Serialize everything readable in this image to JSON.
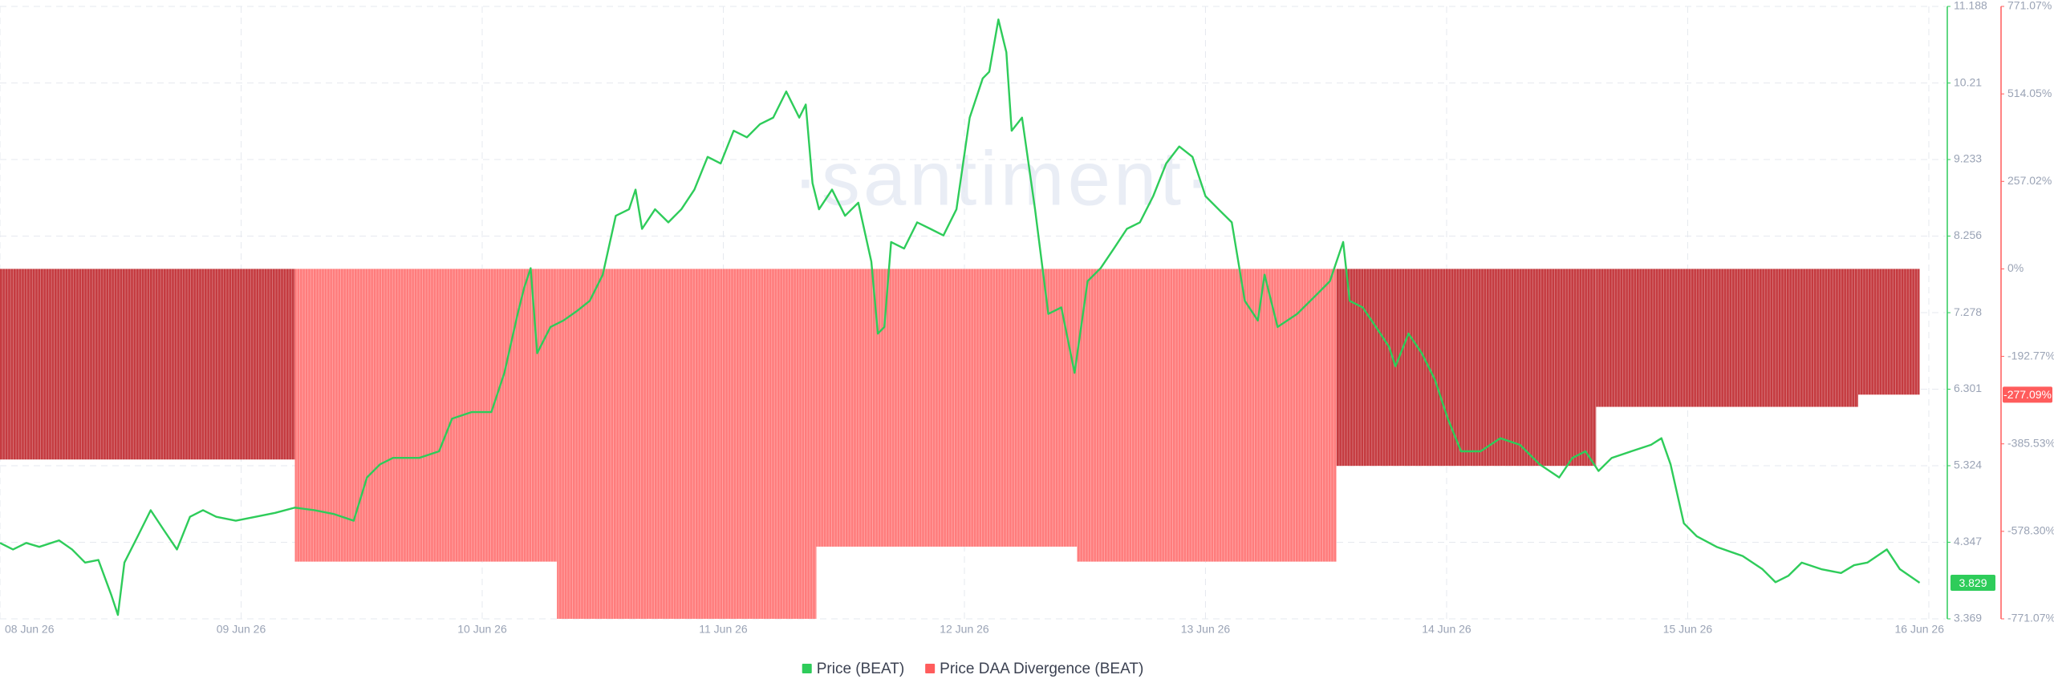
{
  "chart_data": {
    "type": "combo",
    "watermark": "·santiment·",
    "grid": true,
    "legend": "bottom",
    "xlim": [
      0,
      8.07
    ],
    "xticks": [
      {
        "value": 0,
        "label": "08 Jun 26"
      },
      {
        "value": 1,
        "label": "09 Jun 26"
      },
      {
        "value": 2,
        "label": "10 Jun 26"
      },
      {
        "value": 3,
        "label": "11 Jun 26"
      },
      {
        "value": 4,
        "label": "12 Jun 26"
      },
      {
        "value": 5,
        "label": "13 Jun 26"
      },
      {
        "value": 6,
        "label": "14 Jun 26"
      },
      {
        "value": 7,
        "label": "15 Jun 26"
      },
      {
        "value": 8,
        "label": "16 Jun 26"
      }
    ],
    "ylim": [
      3.369,
      11.188
    ],
    "yticks": [
      3.369,
      4.347,
      5.324,
      6.301,
      7.278,
      8.256,
      9.233,
      10.21,
      11.188
    ],
    "y2lim": [
      -771.07,
      771.07
    ],
    "y2ticks": [
      {
        "value": -771.07,
        "label": "-771.07%"
      },
      {
        "value": -578.3,
        "label": "-578.30%"
      },
      {
        "value": -385.53,
        "label": "-385.53%"
      },
      {
        "value": -192.77,
        "label": "-192.77%"
      },
      {
        "value": 0,
        "label": "0%"
      },
      {
        "value": 257.02,
        "label": "257.02%"
      },
      {
        "value": 514.05,
        "label": "514.05%"
      },
      {
        "value": 771.07,
        "label": "771.07%"
      }
    ],
    "series": [
      {
        "name": "Price (BEAT)",
        "type": "line",
        "color": "#2ecc5a",
        "x": [
          0,
          0.054,
          0.109,
          0.163,
          0.245,
          0.299,
          0.353,
          0.408,
          0.462,
          0.489,
          0.516,
          0.571,
          0.625,
          0.679,
          0.734,
          0.788,
          0.842,
          0.897,
          0.978,
          1.06,
          1.141,
          1.223,
          1.304,
          1.386,
          1.467,
          1.522,
          1.576,
          1.63,
          1.739,
          1.821,
          1.875,
          1.957,
          2.038,
          2.092,
          2.147,
          2.174,
          2.201,
          2.228,
          2.283,
          2.337,
          2.391,
          2.446,
          2.5,
          2.554,
          2.609,
          2.636,
          2.663,
          2.717,
          2.772,
          2.826,
          2.88,
          2.935,
          2.989,
          3.043,
          3.098,
          3.152,
          3.207,
          3.261,
          3.315,
          3.342,
          3.37,
          3.397,
          3.451,
          3.505,
          3.56,
          3.614,
          3.641,
          3.668,
          3.696,
          3.75,
          3.804,
          3.859,
          3.913,
          3.967,
          4.022,
          4.076,
          4.103,
          4.141,
          4.174,
          4.196,
          4.239,
          4.293,
          4.348,
          4.402,
          4.457,
          4.484,
          4.511,
          4.565,
          4.62,
          4.674,
          4.728,
          4.783,
          4.837,
          4.891,
          4.946,
          5,
          5.054,
          5.109,
          5.163,
          5.217,
          5.245,
          5.299,
          5.38,
          5.462,
          5.516,
          5.571,
          5.598,
          5.652,
          5.707,
          5.761,
          5.788,
          5.842,
          5.897,
          5.951,
          6.005,
          6.06,
          6.141,
          6.223,
          6.304,
          6.386,
          6.467,
          6.522,
          6.576,
          6.63,
          6.685,
          6.766,
          6.848,
          6.891,
          6.929,
          6.984,
          7.038,
          7.12,
          7.228,
          7.31,
          7.364,
          7.418,
          7.473,
          7.554,
          7.636,
          7.69,
          7.745,
          7.826,
          7.88,
          7.962
        ],
        "values": [
          4.338,
          4.255,
          4.338,
          4.288,
          4.371,
          4.255,
          4.087,
          4.121,
          3.67,
          3.419,
          4.087,
          4.422,
          4.756,
          4.505,
          4.255,
          4.672,
          4.756,
          4.672,
          4.622,
          4.672,
          4.722,
          4.789,
          4.756,
          4.706,
          4.622,
          5.174,
          5.341,
          5.424,
          5.424,
          5.508,
          5.925,
          6.009,
          6.009,
          6.51,
          7.262,
          7.596,
          7.846,
          6.761,
          7.095,
          7.178,
          7.295,
          7.429,
          7.763,
          8.515,
          8.598,
          8.849,
          8.348,
          8.598,
          8.431,
          8.598,
          8.849,
          9.267,
          9.183,
          9.601,
          9.517,
          9.684,
          9.768,
          10.102,
          9.768,
          9.935,
          8.932,
          8.598,
          8.849,
          8.515,
          8.682,
          7.93,
          7.011,
          7.095,
          8.18,
          8.097,
          8.431,
          8.348,
          8.264,
          8.598,
          9.768,
          10.269,
          10.353,
          11.021,
          10.603,
          9.601,
          9.768,
          8.598,
          7.262,
          7.345,
          6.51,
          7.095,
          7.68,
          7.846,
          8.097,
          8.348,
          8.431,
          8.765,
          9.183,
          9.4,
          9.267,
          8.765,
          8.598,
          8.431,
          7.429,
          7.178,
          7.763,
          7.095,
          7.262,
          7.512,
          7.68,
          8.18,
          7.429,
          7.345,
          7.095,
          6.844,
          6.593,
          7.011,
          6.761,
          6.426,
          5.925,
          5.508,
          5.508,
          5.675,
          5.591,
          5.341,
          5.174,
          5.424,
          5.508,
          5.257,
          5.424,
          5.508,
          5.591,
          5.675,
          5.341,
          4.589,
          4.422,
          4.288,
          4.171,
          4.003,
          3.837,
          3.92,
          4.087,
          4.003,
          3.954,
          4.054,
          4.087,
          4.255,
          4.003,
          3.829
        ],
        "last_value_label": 3.829
      },
      {
        "name": "Price DAA Divergence (BEAT)",
        "type": "bar",
        "axis": "y2",
        "color": "#ff5c5c",
        "bins": [
          0,
          1.223,
          2.31,
          3.386,
          4.467,
          5.543,
          6.62,
          7.707,
          7.962
        ],
        "values": [
          -420,
          -645,
          -771,
          -612,
          -645,
          -434,
          -304,
          -277.09
        ],
        "colors": [
          "#c53b40",
          "#ff7c7c",
          "#ff7c7c",
          "#ff7c7c",
          "#ff7c7c",
          "#c53b40",
          "#c53b40",
          "#c53b40"
        ],
        "last_value_label": {
          "value": -277.09,
          "label": "-277.09%"
        }
      }
    ]
  }
}
